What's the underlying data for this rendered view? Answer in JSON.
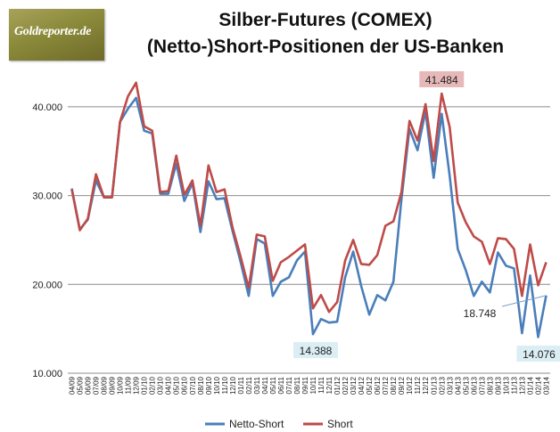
{
  "logo": {
    "text": "Goldreporter.de"
  },
  "chart_data": {
    "type": "line",
    "title": "Silber-Futures (COMEX)",
    "subtitle": "(Netto-)Short-Positionen der US-Banken",
    "xlabel": "",
    "ylabel": "",
    "ylim": [
      10000,
      45000
    ],
    "yticks": [
      10000,
      20000,
      30000,
      40000
    ],
    "ytick_labels": [
      "10.000",
      "20.000",
      "30.000",
      "40.000"
    ],
    "grid": true,
    "legend": "bottom",
    "x_labels": [
      "04/09",
      "05/09",
      "06/09",
      "07/09",
      "08/09",
      "09/09",
      "10/09",
      "11/09",
      "12/09",
      "01/10",
      "02/10",
      "03/10",
      "04/10",
      "05/10",
      "06/10",
      "07/10",
      "08/10",
      "09/10",
      "10/10",
      "11/10",
      "12/10",
      "01/11",
      "02/11",
      "03/11",
      "04/11",
      "05/11",
      "06/11",
      "07/11",
      "08/11",
      "09/11",
      "10/11",
      "11/11",
      "12/11",
      "01/12",
      "02/12",
      "03/12",
      "04/12",
      "05/12",
      "06/12",
      "07/12",
      "08/12",
      "09/12",
      "10/12",
      "11/12",
      "12/12",
      "01/13",
      "02/13",
      "03/13",
      "04/13",
      "05/13",
      "06/13",
      "07/13",
      "08/13",
      "09/13",
      "10/13",
      "11/13",
      "12/13",
      "01/14",
      "02/14",
      "03/14"
    ],
    "series": [
      {
        "name": "Netto-Short",
        "color": "#4a7ebb",
        "values": [
          30800,
          26200,
          27300,
          31700,
          29800,
          29800,
          38300,
          39800,
          41000,
          37300,
          37000,
          30200,
          30200,
          33600,
          29400,
          31400,
          25900,
          31600,
          29600,
          29700,
          26000,
          22500,
          18700,
          25100,
          24600,
          18700,
          20300,
          20800,
          22700,
          23700,
          14388,
          16100,
          15700,
          15800,
          20800,
          23700,
          19800,
          16600,
          18800,
          18200,
          20300,
          29600,
          37500,
          35100,
          39500,
          32000,
          39200,
          32200,
          24000,
          21600,
          18700,
          20300,
          19100,
          23600,
          22100,
          21800,
          14500,
          21000,
          14076,
          18748
        ]
      },
      {
        "name": "Short",
        "color": "#be4b48",
        "values": [
          30700,
          26100,
          27400,
          32400,
          29800,
          29800,
          38300,
          41200,
          42700,
          37800,
          37300,
          30400,
          30500,
          34500,
          30100,
          31700,
          26600,
          33400,
          30400,
          30700,
          26400,
          23100,
          19600,
          25600,
          25400,
          20400,
          22500,
          23100,
          23800,
          24500,
          17300,
          18800,
          16900,
          18000,
          22700,
          25000,
          22300,
          22200,
          23300,
          26600,
          27100,
          30400,
          38400,
          36200,
          40300,
          33900,
          41484,
          37700,
          29200,
          27000,
          25400,
          24800,
          22300,
          25200,
          25100,
          24000,
          18700,
          24500,
          19900,
          22500
        ]
      }
    ],
    "annotations": [
      {
        "text": "41.484",
        "series": "Short",
        "index": 46
      },
      {
        "text": "14.388",
        "series": "Netto-Short",
        "index": 30
      },
      {
        "text": "14.076",
        "series": "Netto-Short",
        "index": 58
      },
      {
        "text": "18.748",
        "series": "Netto-Short",
        "index": 59
      }
    ]
  }
}
